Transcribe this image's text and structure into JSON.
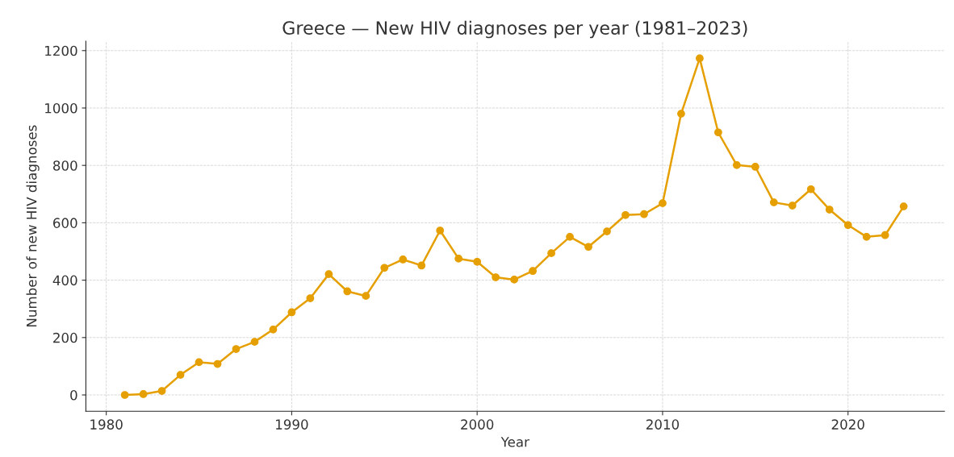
{
  "chart_data": {
    "type": "line",
    "title": "Greece — New HIV diagnoses per year (1981–2023)",
    "xlabel": "Year",
    "ylabel": "Number of new HIV diagnoses",
    "x": [
      1981,
      1982,
      1983,
      1984,
      1985,
      1986,
      1987,
      1988,
      1989,
      1990,
      1991,
      1992,
      1993,
      1994,
      1995,
      1996,
      1997,
      1998,
      1999,
      2000,
      2001,
      2002,
      2003,
      2004,
      2005,
      2006,
      2007,
      2008,
      2009,
      2010,
      2011,
      2012,
      2013,
      2014,
      2015,
      2016,
      2017,
      2018,
      2019,
      2020,
      2021,
      2022,
      2023
    ],
    "series": [
      {
        "color": "#e69f00",
        "values": [
          0,
          3,
          14,
          70,
          114,
          108,
          160,
          185,
          228,
          288,
          337,
          421,
          361,
          345,
          443,
          472,
          451,
          573,
          475,
          464,
          410,
          402,
          432,
          494,
          551,
          516,
          570,
          627,
          630,
          668,
          980,
          1173,
          915,
          801,
          795,
          671,
          660,
          717,
          646,
          592,
          551,
          557,
          657
        ]
      }
    ],
    "xlim": [
      1978.9,
      2025.2
    ],
    "xticks": [
      1980,
      1990,
      2000,
      2010,
      2020
    ],
    "ylim": [
      -57,
      1233
    ],
    "yticks": [
      0,
      200,
      400,
      600,
      800,
      1000,
      1200
    ],
    "grid": true,
    "marker": "circle",
    "line_style": "solid"
  }
}
